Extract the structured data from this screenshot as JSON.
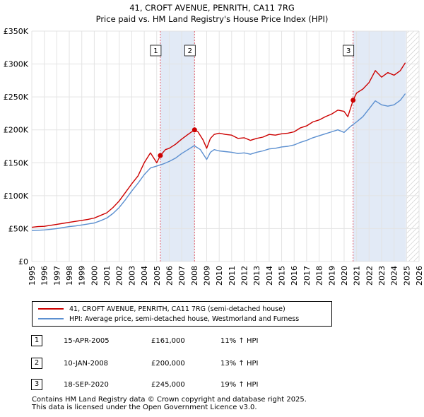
{
  "chart_data": {
    "type": "line",
    "title": "41, CROFT AVENUE, PENRITH, CA11 7RG",
    "subtitle": "Price paid vs. HM Land Registry's House Price Index (HPI)",
    "xlabel": "",
    "ylabel": "",
    "xlim": [
      1995,
      2026
    ],
    "ylim": [
      0,
      350000
    ],
    "x_ticks": [
      "1995",
      "1996",
      "1997",
      "1998",
      "1999",
      "2000",
      "2001",
      "2002",
      "2003",
      "2004",
      "2005",
      "2006",
      "2007",
      "2008",
      "2009",
      "2010",
      "2011",
      "2012",
      "2013",
      "2014",
      "2015",
      "2016",
      "2017",
      "2018",
      "2019",
      "2020",
      "2021",
      "2022",
      "2023",
      "2024",
      "2025",
      "2026"
    ],
    "y_ticks": [
      {
        "value": 0,
        "label": "£0"
      },
      {
        "value": 50000,
        "label": "£50K"
      },
      {
        "value": 100000,
        "label": "£100K"
      },
      {
        "value": 150000,
        "label": "£150K"
      },
      {
        "value": 200000,
        "label": "£200K"
      },
      {
        "value": 250000,
        "label": "£250K"
      },
      {
        "value": 300000,
        "label": "£300K"
      },
      {
        "value": 350000,
        "label": "£350K"
      }
    ],
    "grid": true,
    "shaded_periods": [
      [
        2005.29,
        2008.03
      ],
      [
        2020.72,
        2024.95
      ]
    ],
    "hatched_from": 2025.0,
    "series": [
      {
        "name": "41, CROFT AVENUE, PENRITH, CA11 7RG (semi-detached house)",
        "color": "#cc0000",
        "x": [
          1995.0,
          1995.5,
          1996.0,
          1996.5,
          1997.0,
          1997.5,
          1998.0,
          1998.5,
          1999.0,
          1999.5,
          2000.0,
          2000.5,
          2001.0,
          2001.5,
          2002.0,
          2002.5,
          2003.0,
          2003.5,
          2004.0,
          2004.5,
          2005.0,
          2005.29,
          2005.7,
          2006.0,
          2006.5,
          2007.0,
          2007.5,
          2008.03,
          2008.3,
          2008.7,
          2009.0,
          2009.3,
          2009.6,
          2010.0,
          2010.5,
          2011.0,
          2011.5,
          2012.0,
          2012.5,
          2013.0,
          2013.5,
          2014.0,
          2014.5,
          2015.0,
          2015.5,
          2016.0,
          2016.5,
          2017.0,
          2017.5,
          2018.0,
          2018.5,
          2019.0,
          2019.5,
          2020.0,
          2020.3,
          2020.72,
          2021.0,
          2021.5,
          2022.0,
          2022.5,
          2023.0,
          2023.5,
          2024.0,
          2024.5,
          2024.9
        ],
        "values": [
          52000,
          53000,
          53500,
          55000,
          56500,
          58000,
          59500,
          61000,
          62500,
          64000,
          66000,
          70000,
          74000,
          82000,
          92000,
          105000,
          118000,
          130000,
          150000,
          165000,
          150000,
          161000,
          170000,
          172000,
          178000,
          186000,
          193000,
          200000,
          197000,
          185000,
          172000,
          187000,
          193000,
          195000,
          193000,
          192000,
          187000,
          188000,
          184000,
          187000,
          189000,
          193000,
          192000,
          194000,
          195000,
          197000,
          203000,
          206000,
          212000,
          215000,
          220000,
          224000,
          230000,
          228000,
          220000,
          245000,
          256000,
          262000,
          272000,
          290000,
          280000,
          287000,
          283000,
          290000,
          302000
        ]
      },
      {
        "name": "HPI: Average price, semi-detached house, Westmorland and Furness",
        "color": "#5b8fd0",
        "x": [
          1995.0,
          1995.5,
          1996.0,
          1996.5,
          1997.0,
          1997.5,
          1998.0,
          1998.5,
          1999.0,
          1999.5,
          2000.0,
          2000.5,
          2001.0,
          2001.5,
          2002.0,
          2002.5,
          2003.0,
          2003.5,
          2004.0,
          2004.5,
          2005.0,
          2005.5,
          2006.0,
          2006.5,
          2007.0,
          2007.5,
          2008.0,
          2008.5,
          2009.0,
          2009.3,
          2009.6,
          2010.0,
          2010.5,
          2011.0,
          2011.5,
          2012.0,
          2012.5,
          2013.0,
          2013.5,
          2014.0,
          2014.5,
          2015.0,
          2015.5,
          2016.0,
          2016.5,
          2017.0,
          2017.5,
          2018.0,
          2018.5,
          2019.0,
          2019.5,
          2020.0,
          2020.5,
          2021.0,
          2021.5,
          2022.0,
          2022.5,
          2023.0,
          2023.5,
          2024.0,
          2024.5,
          2024.9
        ],
        "values": [
          47000,
          47500,
          48000,
          49000,
          50000,
          51500,
          53000,
          54000,
          55500,
          57000,
          58500,
          62000,
          66000,
          73000,
          82000,
          94000,
          107000,
          119000,
          132000,
          142000,
          145000,
          148000,
          152000,
          157000,
          164000,
          170000,
          176000,
          170000,
          155000,
          166000,
          170000,
          168000,
          167000,
          166000,
          164000,
          165000,
          163000,
          166000,
          168000,
          171000,
          172000,
          174000,
          175000,
          177000,
          181000,
          184000,
          188000,
          191000,
          194000,
          197000,
          200000,
          196000,
          205000,
          212000,
          220000,
          232000,
          244000,
          238000,
          236000,
          238000,
          245000,
          255000
        ]
      }
    ],
    "sale_markers": [
      {
        "label": "1",
        "x": 2005.29,
        "value": 161000
      },
      {
        "label": "2",
        "x": 2008.03,
        "value": 200000
      },
      {
        "label": "3",
        "x": 2020.72,
        "value": 245000
      }
    ]
  },
  "legend": {
    "items": [
      {
        "label": "41, CROFT AVENUE, PENRITH, CA11 7RG (semi-detached house)",
        "color": "#cc0000"
      },
      {
        "label": "HPI: Average price, semi-detached house, Westmorland and Furness",
        "color": "#5b8fd0"
      }
    ]
  },
  "sales": [
    {
      "marker": "1",
      "date": "15-APR-2005",
      "price": "£161,000",
      "hpi": "11% ↑ HPI"
    },
    {
      "marker": "2",
      "date": "10-JAN-2008",
      "price": "£200,000",
      "hpi": "13% ↑ HPI"
    },
    {
      "marker": "3",
      "date": "18-SEP-2020",
      "price": "£245,000",
      "hpi": "19% ↑ HPI"
    }
  ],
  "footer": {
    "line1": "Contains HM Land Registry data © Crown copyright and database right 2025.",
    "line2": "This data is licensed under the Open Government Licence v3.0."
  }
}
